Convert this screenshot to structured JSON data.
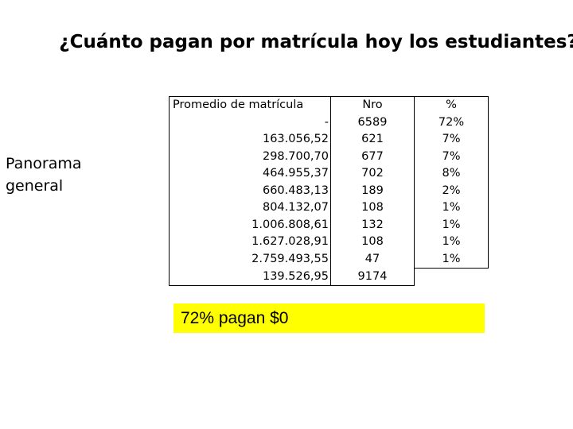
{
  "title": "¿Cuánto pagan por matrícula hoy los estudiantes?",
  "side_label": "Panorama general",
  "table": {
    "headers": [
      "Promedio de matrícula",
      "Nro",
      "%"
    ],
    "rows": [
      {
        "promedio": "-",
        "nro": "6589",
        "pct": "72%"
      },
      {
        "promedio": "163.056,52",
        "nro": "621",
        "pct": "7%"
      },
      {
        "promedio": "298.700,70",
        "nro": "677",
        "pct": "7%"
      },
      {
        "promedio": "464.955,37",
        "nro": "702",
        "pct": "8%"
      },
      {
        "promedio": "660.483,13",
        "nro": "189",
        "pct": "2%"
      },
      {
        "promedio": "804.132,07",
        "nro": "108",
        "pct": "1%"
      },
      {
        "promedio": "1.006.808,61",
        "nro": "132",
        "pct": "1%"
      },
      {
        "promedio": "1.627.028,91",
        "nro": "108",
        "pct": "1%"
      },
      {
        "promedio": "2.759.493,55",
        "nro": "47",
        "pct": "1%"
      },
      {
        "promedio": "139.526,95",
        "nro": "9174",
        "pct": ""
      }
    ]
  },
  "highlight": {
    "text": "72% pagan $0",
    "color": "#ffff00"
  }
}
